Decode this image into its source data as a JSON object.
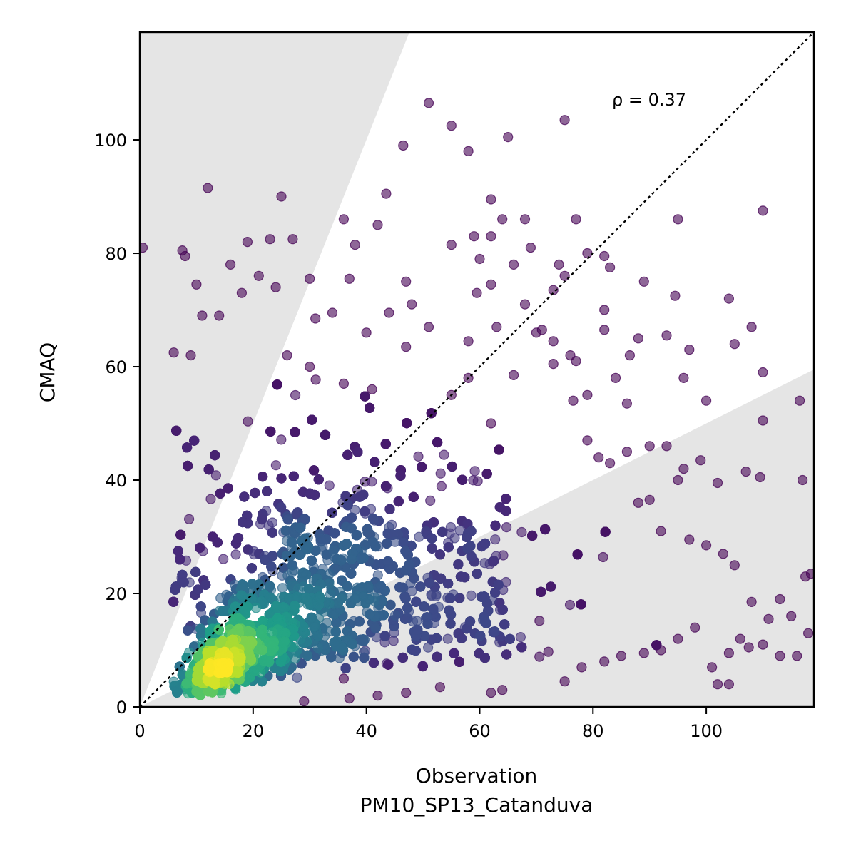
{
  "chart_data": {
    "type": "scatter",
    "title": "",
    "xlabel": "Observation",
    "xlabel_sub": "PM10_SP13_Catanduva",
    "ylabel": "CMAQ",
    "xlim": [
      0,
      119
    ],
    "ylim": [
      0,
      119
    ],
    "xticks": [
      0,
      20,
      40,
      60,
      80,
      100
    ],
    "yticks": [
      0,
      20,
      40,
      60,
      80,
      100
    ],
    "annotation": "ρ = 0.37",
    "reference_line": {
      "type": "1:1",
      "style": "dotted",
      "color": "#000000"
    },
    "shaded_regions": [
      {
        "name": "above factor-2 band",
        "boundary_slope": 2.5,
        "color": "#e5e5e5"
      },
      {
        "name": "below factor-2 band",
        "boundary_slope": 0.5,
        "color": "#e5e5e5"
      }
    ],
    "grid": false,
    "legend": "none",
    "colormap": "viridis (point density)",
    "point_alpha": 0.6,
    "outlier_points": [
      [
        0.5,
        81
      ],
      [
        7.5,
        80.5
      ],
      [
        8,
        79.5
      ],
      [
        12,
        91.5
      ],
      [
        25,
        90
      ],
      [
        51,
        106.5
      ],
      [
        46.5,
        99
      ],
      [
        55,
        102.5
      ],
      [
        58,
        98
      ],
      [
        65,
        100.5
      ],
      [
        75,
        103.5
      ],
      [
        43.5,
        90.5
      ],
      [
        19,
        82
      ],
      [
        23,
        82.5
      ],
      [
        27,
        82.5
      ],
      [
        36,
        86
      ],
      [
        38,
        81.5
      ],
      [
        42,
        85
      ],
      [
        62,
        89.5
      ],
      [
        68,
        86
      ],
      [
        77,
        86
      ],
      [
        95,
        86
      ],
      [
        110,
        87.5
      ],
      [
        64,
        86
      ],
      [
        18,
        73
      ],
      [
        16,
        78
      ],
      [
        30,
        75.5
      ],
      [
        37,
        75.5
      ],
      [
        47,
        75
      ],
      [
        55,
        81.5
      ],
      [
        60,
        79
      ],
      [
        74,
        78
      ],
      [
        75,
        76
      ],
      [
        82,
        79.5
      ],
      [
        83,
        77.5
      ],
      [
        94.5,
        72.5
      ],
      [
        104,
        72
      ],
      [
        86.5,
        62
      ],
      [
        89,
        75
      ],
      [
        93,
        65.5
      ],
      [
        96,
        58
      ],
      [
        100,
        54
      ],
      [
        88,
        65
      ],
      [
        108,
        67
      ],
      [
        110,
        59
      ],
      [
        116.5,
        54
      ],
      [
        97,
        63
      ],
      [
        110,
        50.5
      ],
      [
        105,
        64
      ],
      [
        84,
        58
      ],
      [
        82,
        66.5
      ],
      [
        86,
        53.5
      ],
      [
        77,
        61
      ],
      [
        73,
        60.5
      ],
      [
        70,
        66
      ],
      [
        73,
        64.5
      ],
      [
        99,
        43.5
      ],
      [
        102,
        39.5
      ],
      [
        107,
        41.5
      ],
      [
        109.5,
        40.5
      ],
      [
        117,
        40
      ],
      [
        95,
        40
      ],
      [
        96,
        42
      ],
      [
        93,
        46
      ],
      [
        90,
        46
      ],
      [
        86,
        45
      ],
      [
        11,
        69
      ],
      [
        14,
        69
      ],
      [
        9,
        62
      ],
      [
        6,
        62.5
      ],
      [
        26,
        62
      ],
      [
        10,
        74.5
      ],
      [
        21,
        76
      ],
      [
        24,
        74
      ],
      [
        31,
        68.5
      ],
      [
        34,
        69.5
      ],
      [
        44,
        69.5
      ],
      [
        48,
        71
      ],
      [
        51,
        67
      ],
      [
        58,
        64.5
      ],
      [
        62,
        74.5
      ],
      [
        68,
        71
      ],
      [
        71,
        66.5
      ],
      [
        66,
        58.5
      ],
      [
        62,
        50
      ],
      [
        55,
        55
      ],
      [
        58,
        58
      ],
      [
        47,
        63.5
      ],
      [
        40,
        66
      ],
      [
        36,
        57
      ],
      [
        30,
        60
      ],
      [
        41,
        56
      ],
      [
        59.5,
        73
      ],
      [
        63,
        67
      ],
      [
        66,
        78
      ],
      [
        69,
        81
      ],
      [
        59,
        83
      ],
      [
        62,
        83
      ],
      [
        73,
        73.5
      ],
      [
        76,
        62
      ],
      [
        79,
        80
      ],
      [
        82,
        70
      ],
      [
        79,
        55
      ],
      [
        76.5,
        54
      ],
      [
        79,
        47
      ],
      [
        81,
        44
      ],
      [
        83,
        43
      ],
      [
        88,
        36
      ],
      [
        90,
        36.5
      ],
      [
        92,
        31
      ],
      [
        97,
        29.5
      ],
      [
        100,
        28.5
      ],
      [
        103,
        27
      ],
      [
        105,
        25
      ],
      [
        108,
        18.5
      ],
      [
        111,
        15.5
      ],
      [
        113,
        19
      ],
      [
        115,
        16
      ],
      [
        117.5,
        23
      ],
      [
        118.5,
        23.5
      ],
      [
        118,
        13
      ],
      [
        116,
        9
      ],
      [
        113,
        9
      ],
      [
        110,
        11
      ],
      [
        107.5,
        10.5
      ],
      [
        104,
        9.5
      ],
      [
        101,
        7
      ],
      [
        102,
        4
      ],
      [
        104,
        4
      ],
      [
        106,
        12
      ],
      [
        98,
        14
      ],
      [
        95,
        12
      ],
      [
        92,
        10
      ],
      [
        89,
        9.5
      ],
      [
        85,
        9
      ],
      [
        82,
        8
      ],
      [
        78,
        7
      ],
      [
        75,
        4.5
      ],
      [
        64,
        3
      ],
      [
        62,
        2.5
      ],
      [
        53,
        3.5
      ],
      [
        47,
        2.5
      ],
      [
        42,
        2
      ],
      [
        37,
        1.5
      ],
      [
        36,
        5
      ],
      [
        29,
        1
      ]
    ],
    "dense_cloud_description": "Approximately 9000 points; densest region near observation 15-20, CMAQ 7-10; spread extends to observation ~118 and CMAQ ~106"
  }
}
